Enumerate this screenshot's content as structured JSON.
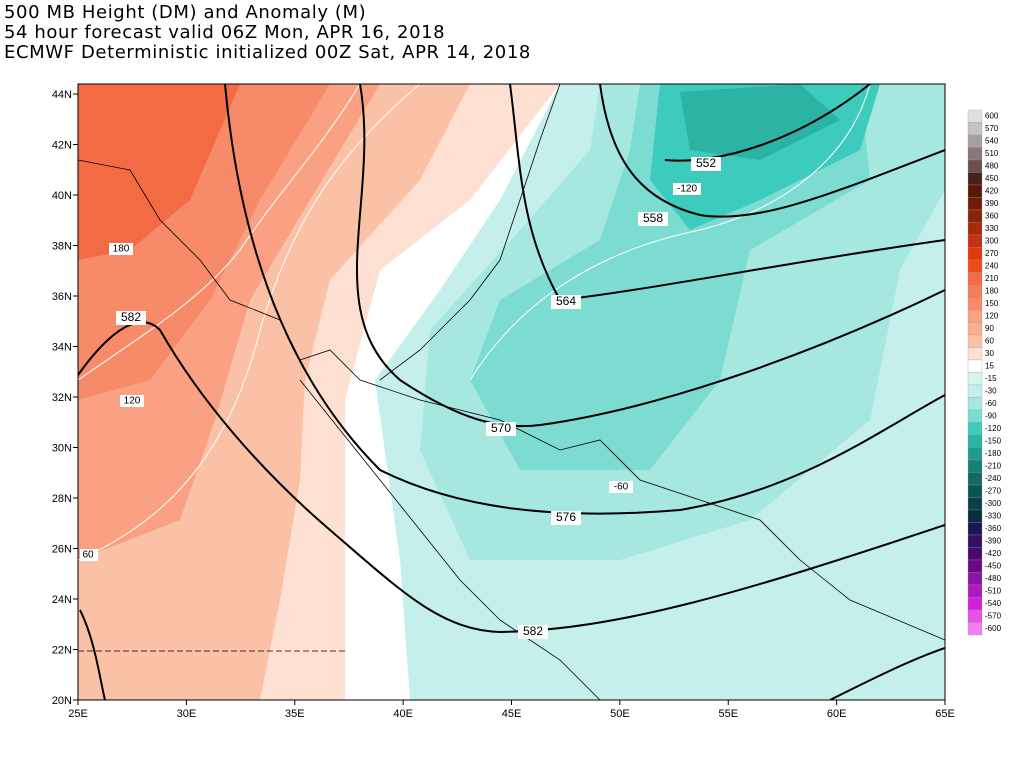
{
  "header": {
    "lines": [
      "500 MB Height (DM) and Anomaly (M)",
      "54 hour forecast valid 06Z Mon, APR 16, 2018",
      "ECMWF Deterministic initialized 00Z Sat, APR 14, 2018"
    ]
  },
  "map": {
    "lat_labels": [
      "44N",
      "42N",
      "40N",
      "38N",
      "36N",
      "34N",
      "32N",
      "30N",
      "28N",
      "26N",
      "24N",
      "22N",
      "20N"
    ],
    "lon_labels": [
      "25E",
      "30E",
      "35E",
      "40E",
      "45E",
      "50E",
      "55E",
      "60E",
      "65E"
    ],
    "height_labels": [
      "552",
      "558",
      "564",
      "570",
      "576",
      "582",
      "582"
    ],
    "anomaly_labels": [
      "-120",
      "-60",
      "180",
      "120",
      "60"
    ]
  },
  "colorbar": {
    "items": [
      {
        "label": "600",
        "color": "#e0e0e0"
      },
      {
        "label": "570",
        "color": "#c4c4c4"
      },
      {
        "label": "540",
        "color": "#a89e9e"
      },
      {
        "label": "510",
        "color": "#8a7878"
      },
      {
        "label": "480",
        "color": "#6a5050"
      },
      {
        "label": "450",
        "color": "#4a2018"
      },
      {
        "label": "420",
        "color": "#581a08"
      },
      {
        "label": "390",
        "color": "#6e1e08"
      },
      {
        "label": "360",
        "color": "#8a2408"
      },
      {
        "label": "330",
        "color": "#a82a08"
      },
      {
        "label": "300",
        "color": "#c83010"
      },
      {
        "label": "270",
        "color": "#e03a10"
      },
      {
        "label": "240",
        "color": "#f04a18"
      },
      {
        "label": "210",
        "color": "#f26b45"
      },
      {
        "label": "180",
        "color": "#f47d5a"
      },
      {
        "label": "150",
        "color": "#f78a68"
      },
      {
        "label": "120",
        "color": "#f9a182"
      },
      {
        "label": "90",
        "color": "#fab090"
      },
      {
        "label": "60",
        "color": "#fbc1a6"
      },
      {
        "label": "30",
        "color": "#fde0d2"
      },
      {
        "label": "15",
        "color": "#ffffff"
      },
      {
        "label": "-15",
        "color": "#d8f4f0"
      },
      {
        "label": "-30",
        "color": "#c5efea"
      },
      {
        "label": "-60",
        "color": "#a6e7df"
      },
      {
        "label": "-90",
        "color": "#7ddcd1"
      },
      {
        "label": "-120",
        "color": "#3ccbbc"
      },
      {
        "label": "-150",
        "color": "#2bb3a3"
      },
      {
        "label": "-180",
        "color": "#209a8c"
      },
      {
        "label": "-210",
        "color": "#168276"
      },
      {
        "label": "-240",
        "color": "#0e6a62"
      },
      {
        "label": "-270",
        "color": "#0a5550"
      },
      {
        "label": "-300",
        "color": "#0a4048"
      },
      {
        "label": "-330",
        "color": "#0c2a40"
      },
      {
        "label": "-360",
        "color": "#1a1850"
      },
      {
        "label": "-390",
        "color": "#301060"
      },
      {
        "label": "-420",
        "color": "#4a0870"
      },
      {
        "label": "-450",
        "color": "#6a0888"
      },
      {
        "label": "-480",
        "color": "#9010a8"
      },
      {
        "label": "-510",
        "color": "#b018c0"
      },
      {
        "label": "-540",
        "color": "#d020d8"
      },
      {
        "label": "-570",
        "color": "#e850e8"
      },
      {
        "label": "-600",
        "color": "#f080f0"
      }
    ]
  }
}
